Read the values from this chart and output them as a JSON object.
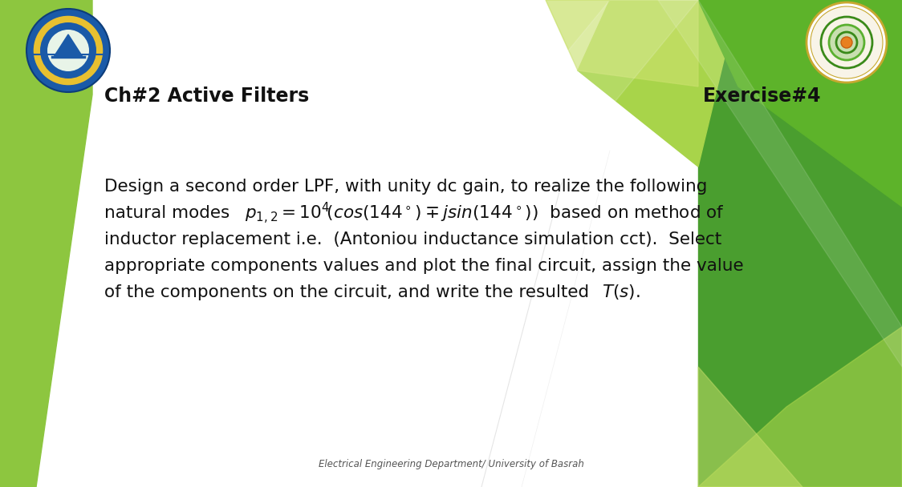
{
  "bg_color": "#ffffff",
  "left_stripe_color": "#8dc63f",
  "right_bg_color": "#4a9e2f",
  "title_left": "Ch#2 Active Filters",
  "title_right": "Exercise#4",
  "title_fontsize": 17,
  "footer_text": "Electrical Engineering Department/ University of Basrah",
  "footer_fontsize": 8.5,
  "body_fontsize": 15.5,
  "green_light": "#a8d44a",
  "green_medium": "#5db32a",
  "green_pale": "#c8e06a",
  "green_dark": "#3a8a1a"
}
